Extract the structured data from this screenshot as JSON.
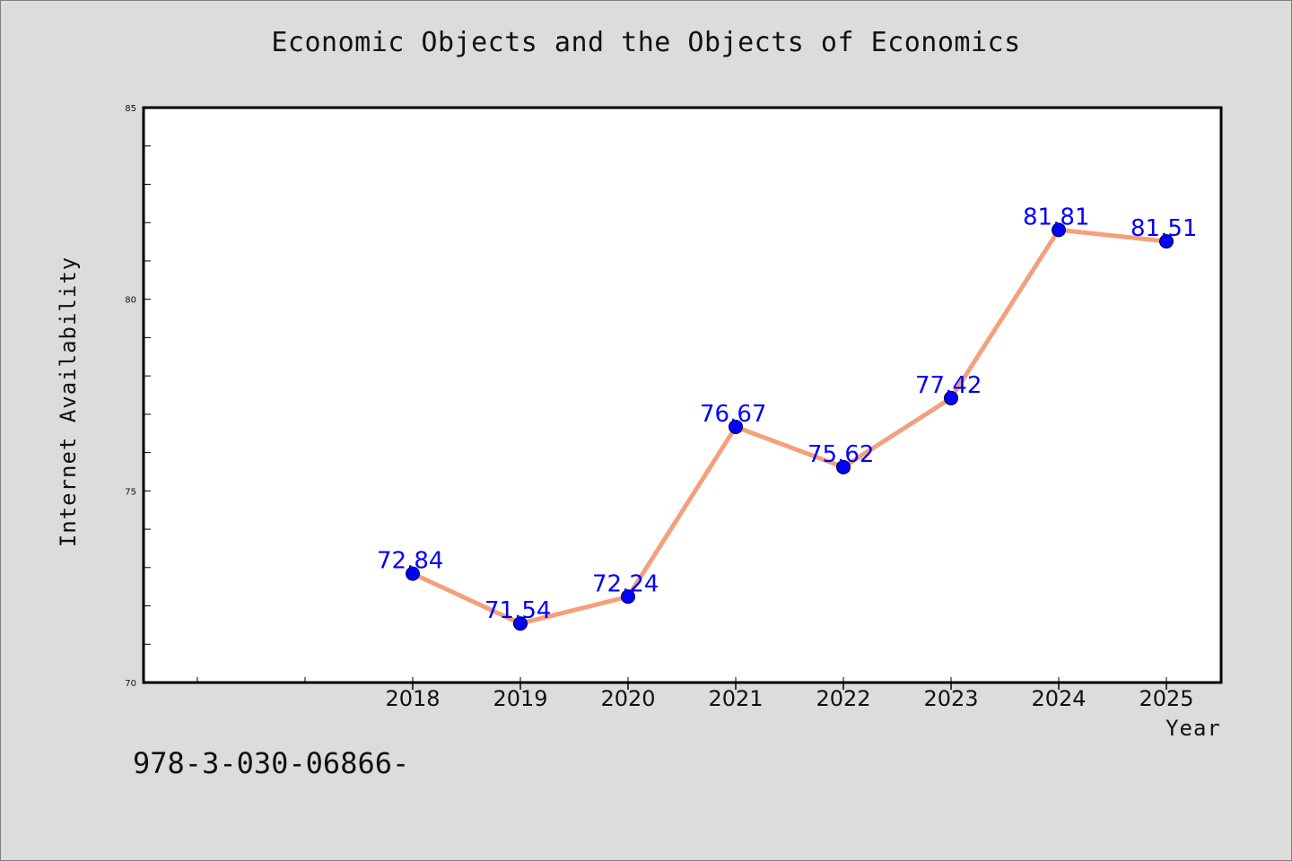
{
  "title": "Economic Objects and the Objects of Economics",
  "footer_text": "978-3-030-06866-",
  "chart_data": {
    "type": "line",
    "title": "Economic Objects and the Objects of Economics",
    "xlabel": "Year",
    "ylabel": "Internet Availability",
    "x": [
      "2018",
      "2019",
      "2020",
      "2021",
      "2022",
      "2023",
      "2024",
      "2025"
    ],
    "series": [
      {
        "values": [
          72.84,
          71.54,
          72.24,
          76.67,
          75.62,
          77.42,
          81.81,
          81.51
        ],
        "data_labels": [
          "72.84",
          "71.54",
          "72.24",
          "76.67",
          "75.62",
          "77.42",
          "81.81",
          "81.51"
        ]
      }
    ],
    "ylim": [
      70,
      85
    ],
    "y_ticks": [
      70,
      75,
      80,
      85
    ],
    "grid": false,
    "legend": "none",
    "colors": {
      "line": "#f4a07c",
      "marker": "#0000ff",
      "data_label": "#0000ff",
      "background": "#dcdcdc",
      "plot_area": "#ffffff"
    }
  }
}
